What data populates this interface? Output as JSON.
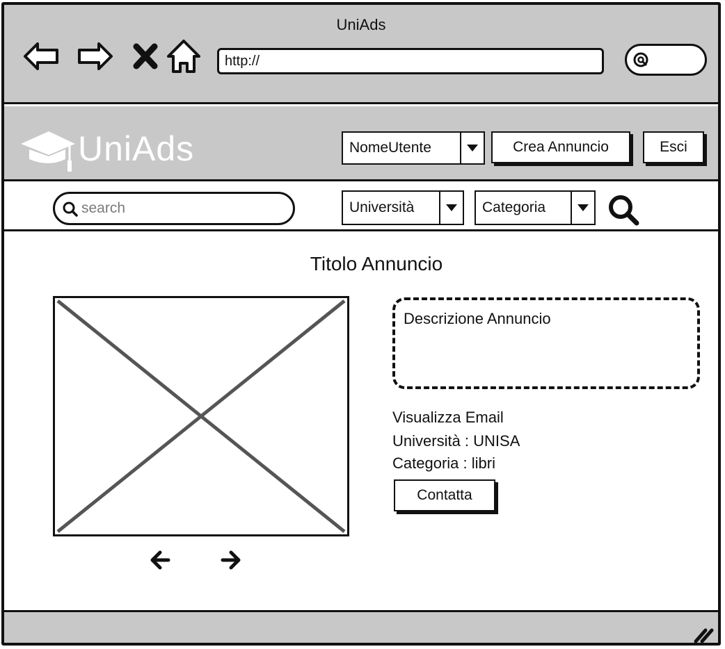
{
  "browser": {
    "title": "UniAds",
    "url": "http://"
  },
  "header": {
    "logo_text": "UniAds",
    "user_dropdown": "NomeUtente",
    "create_ad_label": "Crea Annuncio",
    "logout_label": "Esci"
  },
  "search": {
    "placeholder": "search",
    "university_filter": "Università",
    "category_filter": "Categoria"
  },
  "ad": {
    "title": "Titolo Annuncio",
    "description": "Descrizione Annuncio",
    "show_email": "Visualizza Email",
    "university": "Università : UNISA",
    "category": "Categoria : libri",
    "contact_label": "Contatta"
  },
  "icons": {
    "back": "back-arrow-icon",
    "forward": "forward-arrow-icon",
    "stop": "close-icon",
    "home": "home-icon",
    "search": "search-icon",
    "dropdown": "chevron-down-icon",
    "prev_image": "arrow-left-icon",
    "next_image": "arrow-right-icon",
    "resize": "resize-grip-icon"
  },
  "colors": {
    "chrome": "#c8c8c8",
    "border": "#111111",
    "background": "#ffffff"
  }
}
